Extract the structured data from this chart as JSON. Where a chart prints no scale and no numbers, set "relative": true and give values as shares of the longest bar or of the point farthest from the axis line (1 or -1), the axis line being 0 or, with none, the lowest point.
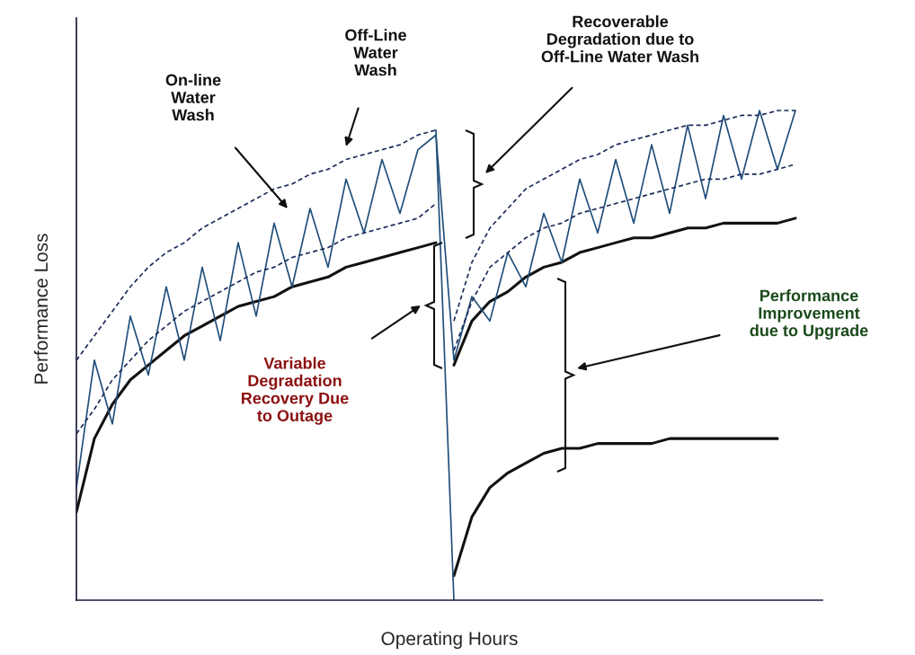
{
  "chart_data": {
    "type": "line",
    "relative": true,
    "xlabel": "Operating Hours",
    "ylabel": "Performance Loss",
    "legend": false,
    "categories": [
      null,
      null,
      null,
      null,
      null,
      null,
      null,
      null,
      null,
      null,
      null,
      null,
      null,
      null,
      null,
      null,
      null,
      null,
      null,
      null,
      null,
      null,
      null,
      null,
      null,
      null,
      null,
      null,
      null,
      null,
      null,
      null,
      null,
      null,
      null,
      null,
      null,
      null,
      null,
      null,
      null
    ],
    "series": [
      {
        "color": "#111111",
        "line_style": "solid",
        "values": [
          0.18,
          0.33,
          0.4,
          0.45,
          0.48,
          0.51,
          0.54,
          0.56,
          0.58,
          0.6,
          0.61,
          0.62,
          0.64,
          0.65,
          0.66,
          0.68,
          0.69,
          0.7,
          0.71,
          0.72,
          0.73,
          null,
          null,
          null,
          null,
          null,
          null,
          null,
          null,
          null,
          null,
          null,
          null,
          null,
          null,
          null,
          null,
          null,
          null,
          null,
          null
        ]
      },
      {
        "color": "#111111",
        "line_style": "solid",
        "values": [
          null,
          null,
          null,
          null,
          null,
          null,
          null,
          null,
          null,
          null,
          null,
          null,
          null,
          null,
          null,
          null,
          null,
          null,
          null,
          null,
          null,
          0.48,
          0.57,
          0.61,
          0.63,
          0.66,
          0.68,
          0.69,
          0.71,
          0.72,
          0.73,
          0.74,
          0.74,
          0.75,
          0.76,
          0.76,
          0.77,
          0.77,
          0.77,
          0.77,
          0.78
        ]
      },
      {
        "color": "#111111",
        "line_style": "solid",
        "values": [
          null,
          null,
          null,
          null,
          null,
          null,
          null,
          null,
          null,
          null,
          null,
          null,
          null,
          null,
          null,
          null,
          null,
          null,
          null,
          null,
          null,
          0.05,
          0.17,
          0.23,
          0.26,
          0.28,
          0.3,
          0.31,
          0.31,
          0.32,
          0.32,
          0.32,
          0.32,
          0.33,
          0.33,
          0.33,
          0.33,
          0.33,
          0.33,
          0.33,
          null
        ]
      },
      {
        "color": "#1f4e79",
        "line_style": "solid",
        "values": [
          0.23,
          0.49,
          0.36,
          0.58,
          0.46,
          0.64,
          0.49,
          0.68,
          0.53,
          0.73,
          0.58,
          0.77,
          0.64,
          0.8,
          0.68,
          0.86,
          0.75,
          0.9,
          0.79,
          0.92,
          0.95,
          0.49,
          0.62,
          0.57,
          0.71,
          0.64,
          0.79,
          0.69,
          0.86,
          0.75,
          0.9,
          0.77,
          0.93,
          0.79,
          0.97,
          0.82,
          0.99,
          0.86,
          1.0,
          0.88,
          1.0
        ]
      },
      {
        "color": "#1f4e79",
        "line_style": "solid",
        "values": [
          null,
          null,
          null,
          null,
          null,
          null,
          null,
          null,
          null,
          null,
          null,
          null,
          null,
          null,
          null,
          null,
          null,
          null,
          null,
          null,
          0.96,
          0,
          null,
          null,
          null,
          null,
          null,
          null,
          null,
          null,
          null,
          null,
          null,
          null,
          null,
          null,
          null,
          null,
          null,
          null,
          null
        ]
      },
      {
        "color": "#1a2a5a",
        "line_style": "dashed",
        "values": [
          0.49,
          0.54,
          0.59,
          0.64,
          0.68,
          0.71,
          0.73,
          0.76,
          0.78,
          0.8,
          0.82,
          0.84,
          0.85,
          0.87,
          0.88,
          0.9,
          0.91,
          0.92,
          0.93,
          0.95,
          0.96,
          null,
          null,
          null,
          null,
          null,
          null,
          null,
          null,
          null,
          null,
          null,
          null,
          null,
          null,
          null,
          null,
          null,
          null,
          null,
          null
        ]
      },
      {
        "color": "#1a2a5a",
        "line_style": "dashed",
        "values": [
          null,
          null,
          null,
          null,
          null,
          null,
          null,
          null,
          null,
          null,
          null,
          null,
          null,
          null,
          null,
          null,
          null,
          null,
          null,
          null,
          null,
          0.57,
          0.69,
          0.76,
          0.8,
          0.84,
          0.86,
          0.88,
          0.9,
          0.91,
          0.93,
          0.94,
          0.95,
          0.96,
          0.97,
          0.97,
          0.98,
          0.99,
          0.99,
          1.0,
          1.0
        ]
      },
      {
        "color": "#1a2a5a",
        "line_style": "dashed",
        "values": [
          0.34,
          0.39,
          0.45,
          0.49,
          0.53,
          0.56,
          0.59,
          0.61,
          0.63,
          0.65,
          0.67,
          0.68,
          0.7,
          0.71,
          0.72,
          0.74,
          0.75,
          0.76,
          0.77,
          0.78,
          0.81,
          null,
          null,
          null,
          null,
          null,
          null,
          null,
          null,
          null,
          null,
          null,
          null,
          null,
          null,
          null,
          null,
          null,
          null,
          null,
          null
        ]
      },
      {
        "color": "#1a2a5a",
        "line_style": "dashed",
        "values": [
          null,
          null,
          null,
          null,
          null,
          null,
          null,
          null,
          null,
          null,
          null,
          null,
          null,
          null,
          null,
          null,
          null,
          null,
          null,
          null,
          null,
          0.51,
          0.61,
          0.68,
          0.71,
          0.74,
          0.76,
          0.77,
          0.79,
          0.8,
          0.81,
          0.82,
          0.83,
          0.84,
          0.85,
          0.86,
          0.86,
          0.87,
          0.87,
          0.88,
          0.89
        ]
      }
    ],
    "annotations": [
      "On-line\nWater\nWash",
      "Off-Line\nWater\nWash",
      "Recoverable\nDegradation due to\nOff-Line Water Wash",
      "Variable\nDegradation\nRecovery Due\nto Outage",
      "Performance\nImprovement\ndue to Upgrade"
    ]
  }
}
